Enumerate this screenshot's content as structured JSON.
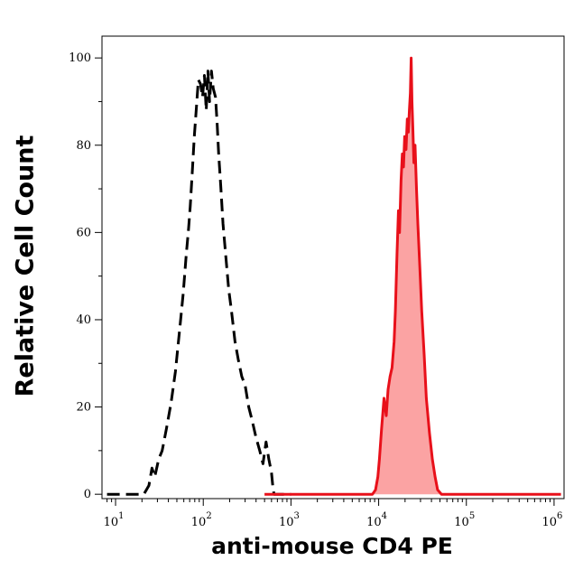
{
  "chart_data": {
    "type": "area",
    "title": "",
    "xlabel": "anti-mouse CD4 PE",
    "ylabel": "Relative Cell Count",
    "x_scale": "log",
    "xlim": [
      7,
      1300000
    ],
    "ylim": [
      -1,
      105
    ],
    "x_ticks": [
      {
        "base": "10",
        "exp": "1",
        "value": 10
      },
      {
        "base": "10",
        "exp": "2",
        "value": 100
      },
      {
        "base": "10",
        "exp": "3",
        "value": 1000
      },
      {
        "base": "10",
        "exp": "4",
        "value": 10000
      },
      {
        "base": "10",
        "exp": "5",
        "value": 100000
      },
      {
        "base": "10",
        "exp": "6",
        "value": 1000000
      }
    ],
    "y_ticks": [
      "0",
      "20",
      "40",
      "60",
      "80",
      "100"
    ],
    "grid": false,
    "series": [
      {
        "style": "dashed-line",
        "color": "#000000",
        "fill": "none",
        "points": [
          [
            8,
            0
          ],
          [
            15,
            0
          ],
          [
            21,
            0
          ],
          [
            24,
            2
          ],
          [
            26,
            6
          ],
          [
            28,
            4
          ],
          [
            31,
            8
          ],
          [
            34,
            10
          ],
          [
            38,
            15
          ],
          [
            43,
            21
          ],
          [
            48,
            28
          ],
          [
            54,
            38
          ],
          [
            59,
            46
          ],
          [
            64,
            55
          ],
          [
            68,
            61
          ],
          [
            71,
            66
          ],
          [
            75,
            74
          ],
          [
            79,
            82
          ],
          [
            83,
            88
          ],
          [
            88,
            95
          ],
          [
            93,
            94
          ],
          [
            98,
            91
          ],
          [
            103,
            96
          ],
          [
            108,
            88
          ],
          [
            113,
            97
          ],
          [
            118,
            90
          ],
          [
            124,
            97
          ],
          [
            130,
            93
          ],
          [
            138,
            91
          ],
          [
            144,
            85
          ],
          [
            150,
            78
          ],
          [
            158,
            71
          ],
          [
            168,
            62
          ],
          [
            180,
            55
          ],
          [
            195,
            47
          ],
          [
            210,
            42
          ],
          [
            230,
            35
          ],
          [
            250,
            31
          ],
          [
            275,
            27
          ],
          [
            300,
            25
          ],
          [
            330,
            20
          ],
          [
            360,
            17
          ],
          [
            400,
            13
          ],
          [
            440,
            10
          ],
          [
            480,
            7
          ],
          [
            520,
            12
          ],
          [
            560,
            8
          ],
          [
            600,
            5
          ],
          [
            620,
            2
          ],
          [
            640,
            0
          ],
          [
            700,
            0
          ],
          [
            1000,
            0
          ]
        ]
      },
      {
        "style": "solid-line",
        "color": "#e8101a",
        "fill": "#fba3a3",
        "points": [
          [
            500,
            0
          ],
          [
            3000,
            0
          ],
          [
            8500,
            0
          ],
          [
            9200,
            1
          ],
          [
            9800,
            4
          ],
          [
            10200,
            8
          ],
          [
            10800,
            15
          ],
          [
            11500,
            22
          ],
          [
            12200,
            18
          ],
          [
            12800,
            24
          ],
          [
            13500,
            27
          ],
          [
            14200,
            29
          ],
          [
            15000,
            35
          ],
          [
            15500,
            42
          ],
          [
            16200,
            55
          ],
          [
            16800,
            65
          ],
          [
            17300,
            60
          ],
          [
            18000,
            72
          ],
          [
            18600,
            78
          ],
          [
            19200,
            75
          ],
          [
            19800,
            82
          ],
          [
            20500,
            79
          ],
          [
            21200,
            86
          ],
          [
            21800,
            83
          ],
          [
            22400,
            88
          ],
          [
            23000,
            92
          ],
          [
            23500,
            100
          ],
          [
            24000,
            90
          ],
          [
            24600,
            83
          ],
          [
            25200,
            76
          ],
          [
            26000,
            80
          ],
          [
            27000,
            70
          ],
          [
            28000,
            62
          ],
          [
            29500,
            52
          ],
          [
            31000,
            42
          ],
          [
            33000,
            32
          ],
          [
            35000,
            22
          ],
          [
            38000,
            14
          ],
          [
            41000,
            8
          ],
          [
            44000,
            4
          ],
          [
            47000,
            1
          ],
          [
            52000,
            0
          ],
          [
            60000,
            0
          ],
          [
            1200000,
            0
          ]
        ]
      }
    ]
  }
}
